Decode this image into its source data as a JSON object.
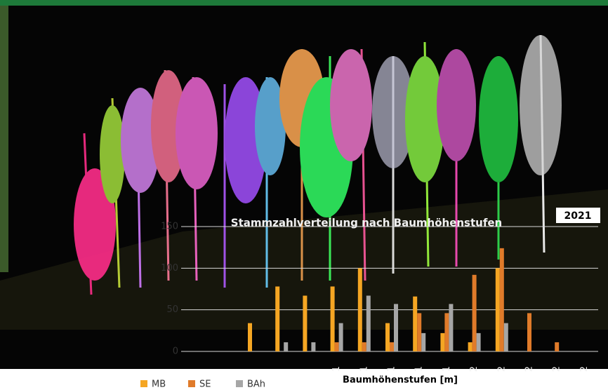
{
  "chart_data": {
    "type": "bar",
    "title": "Stammzahlverteilung nach Baumhöhenstufen",
    "badge": "2021",
    "x_label": "Baumhöhenstufen [m]",
    "categories": [
      null,
      null,
      null,
      null,
      null,
      "1",
      "1",
      "1",
      "1",
      "1",
      "2",
      "2",
      "2",
      "2",
      "2"
    ],
    "series": [
      {
        "name": "MB",
        "color": "#f5a623",
        "values": [
          0,
          0,
          34,
          78,
          67,
          78,
          100,
          34,
          66,
          22,
          11,
          100,
          0,
          0,
          0
        ]
      },
      {
        "name": "SE",
        "color": "#e07b2a",
        "values": [
          0,
          0,
          0,
          0,
          0,
          11,
          11,
          11,
          46,
          46,
          92,
          124,
          46,
          11,
          0
        ]
      },
      {
        "name": "BAh",
        "color": "#a6a6a6",
        "values": [
          0,
          0,
          0,
          11,
          11,
          34,
          67,
          57,
          22,
          57,
          22,
          34,
          0,
          0,
          0
        ]
      }
    ],
    "ylim": [
      0,
      150
    ],
    "yticks": [
      0,
      50,
      100,
      150
    ],
    "grid": true
  }
}
